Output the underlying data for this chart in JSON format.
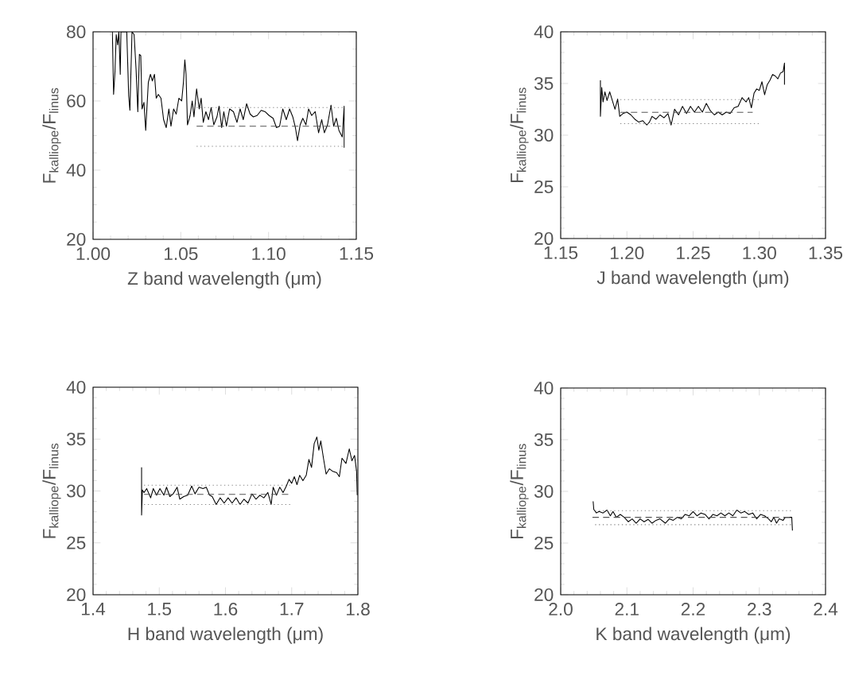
{
  "chart_data": [
    {
      "type": "line",
      "xlabel": "Z band wavelength (μm)",
      "ylabel": "F$_{kalliope}$/F$_{linus}$",
      "xlim": [
        1.0,
        1.15
      ],
      "ylim": [
        20,
        80
      ],
      "xticks": [
        {
          "value": 1.0,
          "label": "1.00"
        },
        {
          "value": 1.05,
          "label": "1.05"
        },
        {
          "value": 1.1,
          "label": "1.10"
        },
        {
          "value": 1.15,
          "label": "1.15"
        }
      ],
      "yticks": [
        20,
        40,
        60,
        80
      ],
      "line_style": "solid",
      "series": [
        {
          "color": "#000000",
          "x": [
            1.011,
            1.0117,
            1.0125,
            1.0132,
            1.014,
            1.0147,
            1.0155,
            1.0159,
            1.0192,
            1.0203,
            1.021,
            1.0222,
            1.0234,
            1.0245,
            1.0255,
            1.0264,
            1.0272,
            1.0279,
            1.029,
            1.03,
            1.0315,
            1.0327,
            1.0338,
            1.035,
            1.036,
            1.0372,
            1.0387,
            1.0402,
            1.0417,
            1.0432,
            1.0444,
            1.0459,
            1.0474,
            1.0489,
            1.0505,
            1.0515,
            1.0523,
            1.053,
            1.0538,
            1.0553,
            1.0565,
            1.0575,
            1.059,
            1.0605,
            1.0616,
            1.0628,
            1.0643,
            1.0658,
            1.0673,
            1.0688,
            1.0706,
            1.0718,
            1.0733,
            1.0745,
            1.076,
            1.0778,
            1.08,
            1.082,
            1.0838,
            1.0856,
            1.0875,
            1.0895,
            1.0913,
            1.0935,
            1.0958,
            1.098,
            1.1003,
            1.1026,
            1.1045,
            1.1063,
            1.1081,
            1.1101,
            1.112,
            1.1138,
            1.1153,
            1.1165,
            1.118,
            1.1195,
            1.1213,
            1.1228,
            1.1246,
            1.1266,
            1.1285,
            1.1303,
            1.1318,
            1.1336,
            1.1356,
            1.1371,
            1.1386,
            1.1401,
            1.142,
            1.1431,
            1.1431
          ],
          "values": [
            80,
            61.9,
            68.5,
            79.2,
            76.2,
            80,
            67.7,
            80,
            80,
            61.5,
            57.3,
            80,
            79.2,
            69.2,
            56.9,
            73.5,
            73.1,
            57.7,
            59.6,
            51.5,
            65.4,
            67.7,
            65.8,
            67.7,
            60.8,
            61.9,
            60.8,
            54.6,
            52.3,
            57.7,
            52.7,
            57.7,
            56.2,
            60.8,
            60,
            65.4,
            71.9,
            67.7,
            53.1,
            55.8,
            60,
            55.4,
            63.5,
            57.7,
            60.8,
            53.8,
            56.9,
            54.6,
            58.1,
            53.1,
            55.4,
            58.5,
            52.3,
            56.9,
            52.7,
            57.7,
            56.9,
            53.8,
            57.7,
            54.6,
            59.2,
            56.2,
            55.4,
            55.8,
            57.3,
            56.9,
            55.8,
            55,
            52.3,
            52.7,
            57.7,
            54.6,
            57.7,
            55.4,
            52.3,
            48.5,
            53.1,
            55,
            53.1,
            57.7,
            55.8,
            56.9,
            50.8,
            54.6,
            50.8,
            53.1,
            58.8,
            52.7,
            55,
            51.5,
            49.6,
            58.5,
            46.5
          ]
        },
        {
          "color": "#888888",
          "line_style": "dotted",
          "x": [
            1.059,
            1.143
          ],
          "values": [
            58.1,
            58.1
          ]
        },
        {
          "color": "#555555",
          "line_style": "dashed",
          "x": [
            1.059,
            1.143
          ],
          "values": [
            52.7,
            52.7
          ]
        },
        {
          "color": "#888888",
          "line_style": "dotted",
          "x": [
            1.059,
            1.143
          ],
          "values": [
            46.9,
            46.9
          ]
        }
      ]
    },
    {
      "type": "line",
      "xlabel": "J band wavelength (μm)",
      "ylabel": "F$_{kalliope}$/F$_{linus}$",
      "xlim": [
        1.15,
        1.35
      ],
      "ylim": [
        20,
        40
      ],
      "xticks": [
        {
          "value": 1.15,
          "label": "1.15"
        },
        {
          "value": 1.2,
          "label": "1.20"
        },
        {
          "value": 1.25,
          "label": "1.25"
        },
        {
          "value": 1.3,
          "label": "1.30"
        },
        {
          "value": 1.35,
          "label": "1.35"
        }
      ],
      "yticks": [
        20,
        25,
        30,
        35,
        40
      ],
      "line_style": "solid",
      "series": [
        {
          "color": "#000000",
          "x": [
            1.18,
            1.18,
            1.181,
            1.182,
            1.1834,
            1.185,
            1.187,
            1.189,
            1.191,
            1.193,
            1.1946,
            1.197,
            1.2,
            1.203,
            1.206,
            1.209,
            1.212,
            1.215,
            1.217,
            1.219,
            1.222,
            1.225,
            1.228,
            1.231,
            1.2334,
            1.236,
            1.239,
            1.242,
            1.245,
            1.248,
            1.251,
            1.254,
            1.257,
            1.26,
            1.263,
            1.266,
            1.269,
            1.272,
            1.275,
            1.278,
            1.281,
            1.284,
            1.287,
            1.29,
            1.292,
            1.294,
            1.296,
            1.298,
            1.3,
            1.302,
            1.304,
            1.306,
            1.308,
            1.31,
            1.312,
            1.314,
            1.316,
            1.318,
            1.319,
            1.319
          ],
          "values": [
            35.31,
            31.82,
            34.61,
            33.21,
            34.19,
            33.35,
            34.19,
            33.35,
            32.51,
            33.49,
            31.82,
            32.09,
            32.23,
            31.96,
            31.54,
            31.26,
            31.4,
            30.98,
            31.26,
            31.82,
            31.54,
            31.96,
            31.68,
            32.09,
            30.98,
            32.51,
            31.96,
            32.79,
            32.09,
            32.79,
            32.23,
            32.79,
            32.23,
            33.07,
            32.37,
            31.96,
            32.23,
            31.96,
            32.23,
            32.09,
            32.65,
            32.79,
            33.63,
            33.21,
            33.63,
            32.65,
            34.05,
            34.47,
            34.33,
            35.17,
            33.91,
            34.89,
            35.31,
            35.87,
            35.73,
            35.45,
            36.01,
            36.15,
            36.98,
            34.89
          ]
        },
        {
          "color": "#888888",
          "line_style": "dotted",
          "x": [
            1.195,
            1.3
          ],
          "values": [
            33.44,
            33.44
          ]
        },
        {
          "color": "#555555",
          "line_style": "dashed",
          "x": [
            1.195,
            1.295
          ],
          "values": [
            32.21,
            32.21
          ]
        },
        {
          "color": "#888888",
          "line_style": "dotted",
          "x": [
            1.195,
            1.3
          ],
          "values": [
            31.12,
            31.12
          ]
        }
      ]
    },
    {
      "type": "line",
      "xlabel": "H band wavelength (μm)",
      "ylabel": "F$_{kalliope}$/F$_{linus}$",
      "xlim": [
        1.4,
        1.8
      ],
      "ylim": [
        20,
        40
      ],
      "xticks": [
        1.4,
        1.5,
        1.6,
        1.7,
        1.8
      ],
      "yticks": [
        20,
        25,
        30,
        35,
        40
      ],
      "line_style": "solid",
      "series": [
        {
          "color": "#000000",
          "x": [
            1.4733,
            1.4733,
            1.4745,
            1.477,
            1.481,
            1.487,
            1.491,
            1.496,
            1.501,
            1.507,
            1.511,
            1.516,
            1.521,
            1.527,
            1.531,
            1.537,
            1.543,
            1.549,
            1.554,
            1.56,
            1.566,
            1.571,
            1.576,
            1.58,
            1.586,
            1.592,
            1.598,
            1.604,
            1.61,
            1.616,
            1.622,
            1.628,
            1.634,
            1.64,
            1.646,
            1.652,
            1.658,
            1.664,
            1.669,
            1.672,
            1.677,
            1.682,
            1.687,
            1.692,
            1.696,
            1.7,
            1.704,
            1.708,
            1.712,
            1.717,
            1.722,
            1.726,
            1.73,
            1.734,
            1.738,
            1.741,
            1.744,
            1.748,
            1.752,
            1.757,
            1.762,
            1.768,
            1.772,
            1.776,
            1.782,
            1.787,
            1.791,
            1.795,
            1.798,
            1.799
          ],
          "values": [
            32.27,
            27.68,
            30.1,
            29.85,
            30.23,
            29.34,
            30.23,
            29.59,
            30.23,
            29.59,
            30.36,
            29.46,
            29.72,
            30.36,
            29.21,
            29.46,
            29.59,
            30.48,
            29.72,
            30.36,
            30.23,
            30.36,
            29.59,
            29.46,
            28.7,
            29.34,
            28.83,
            29.34,
            28.83,
            29.34,
            28.7,
            29.21,
            28.83,
            29.72,
            29.21,
            29.59,
            29.34,
            29.85,
            28.7,
            30.36,
            29.59,
            30.36,
            29.85,
            30.48,
            31.12,
            30.74,
            31.38,
            30.61,
            31.51,
            30.99,
            31.51,
            33.04,
            32.27,
            34.57,
            35.2,
            33.93,
            34.82,
            33.16,
            31.63,
            32.14,
            31.89,
            31.76,
            31.38,
            33.16,
            32.65,
            34.06,
            32.91,
            33.42,
            31.89,
            29.59
          ]
        },
        {
          "color": "#888888",
          "line_style": "dotted",
          "x": [
            1.477,
            1.7
          ],
          "values": [
            30.56,
            30.56
          ]
        },
        {
          "color": "#555555",
          "line_style": "dashed",
          "x": [
            1.477,
            1.696
          ],
          "values": [
            29.67,
            29.67
          ]
        },
        {
          "color": "#888888",
          "line_style": "dotted",
          "x": [
            1.477,
            1.7
          ],
          "values": [
            28.7,
            28.7
          ]
        }
      ]
    },
    {
      "type": "line",
      "xlabel": "K band wavelength (μm)",
      "ylabel": "F$_{kalliope}$/F$_{linus}$",
      "xlim": [
        2.0,
        2.4
      ],
      "ylim": [
        20,
        40
      ],
      "xticks": [
        {
          "value": 2.0,
          "label": "2.0"
        },
        {
          "value": 2.1,
          "label": "2.1"
        },
        {
          "value": 2.2,
          "label": "2.2"
        },
        {
          "value": 2.3,
          "label": "2.3"
        },
        {
          "value": 2.4,
          "label": "2.4"
        }
      ],
      "yticks": [
        20,
        25,
        30,
        35,
        40
      ],
      "line_style": "solid",
      "series": [
        {
          "color": "#000000",
          "x": [
            2.049,
            2.05,
            2.054,
            2.058,
            2.064,
            2.07,
            2.075,
            2.079,
            2.084,
            2.09,
            2.096,
            2.102,
            2.108,
            2.114,
            2.12,
            2.126,
            2.132,
            2.138,
            2.144,
            2.15,
            2.158,
            2.164,
            2.17,
            2.176,
            2.182,
            2.188,
            2.194,
            2.2,
            2.206,
            2.212,
            2.218,
            2.224,
            2.23,
            2.236,
            2.242,
            2.248,
            2.254,
            2.26,
            2.266,
            2.272,
            2.278,
            2.284,
            2.29,
            2.296,
            2.302,
            2.308,
            2.314,
            2.318,
            2.322,
            2.326,
            2.33,
            2.336,
            2.339,
            2.349,
            2.35
          ],
          "values": [
            29.04,
            28.25,
            27.91,
            28.05,
            27.91,
            28.19,
            27.63,
            28.05,
            27.49,
            27.77,
            27.49,
            27.06,
            27.34,
            26.92,
            27.34,
            27.06,
            27.29,
            26.92,
            27.2,
            27.34,
            26.92,
            27.34,
            27.2,
            27.49,
            27.34,
            27.77,
            27.63,
            28.05,
            27.63,
            27.91,
            27.77,
            27.34,
            27.77,
            27.63,
            27.91,
            27.63,
            27.91,
            27.63,
            28.19,
            27.91,
            28.05,
            27.77,
            27.91,
            27.34,
            27.77,
            27.63,
            27.34,
            27.06,
            27.49,
            26.92,
            27.34,
            27.2,
            27.49,
            27.49,
            26.21
          ]
        },
        {
          "color": "#888888",
          "line_style": "dotted",
          "x": [
            2.052,
            2.35
          ],
          "values": [
            28.14,
            28.14
          ]
        },
        {
          "color": "#555555",
          "line_style": "dashed",
          "x": [
            2.048,
            2.35
          ],
          "values": [
            27.49,
            27.49
          ]
        },
        {
          "color": "#888888",
          "line_style": "dotted",
          "x": [
            2.052,
            2.35
          ],
          "values": [
            26.78,
            26.78
          ]
        }
      ]
    }
  ]
}
